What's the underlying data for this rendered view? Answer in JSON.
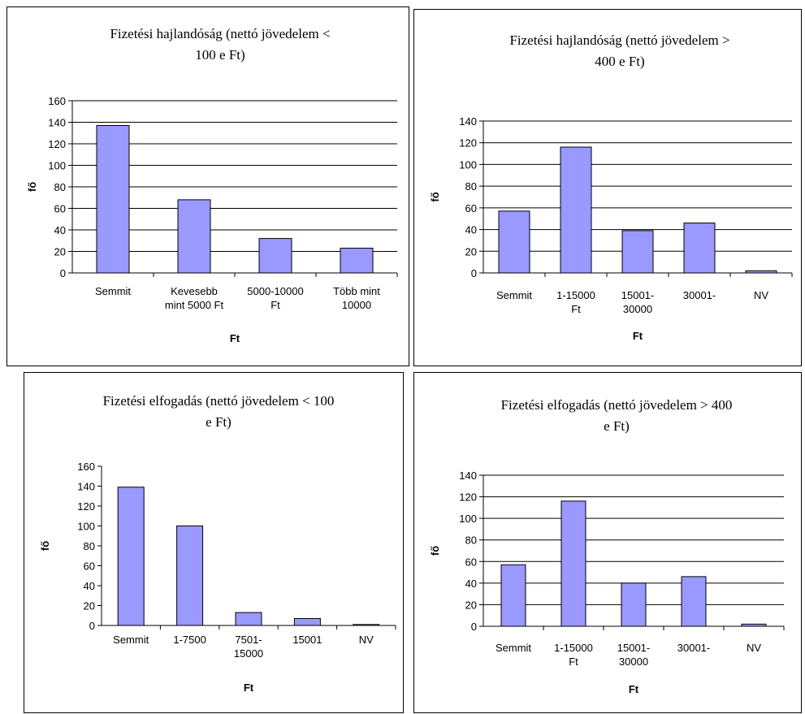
{
  "colors": {
    "bar_fill": "#9999ff",
    "bar_stroke": "#000000",
    "grid": "#000000"
  },
  "chart_data": [
    {
      "type": "bar",
      "title_lines": [
        "Fizetési hajlandóság (nettó jövedelem <",
        "100 e Ft)"
      ],
      "categories": [
        [
          "Semmit"
        ],
        [
          "Kevesebb",
          "mint 5000 Ft"
        ],
        [
          "5000-10000",
          "Ft"
        ],
        [
          "Több mint",
          "10000"
        ]
      ],
      "values": [
        137,
        68,
        32,
        23
      ],
      "ylim": [
        0,
        160
      ],
      "yticks": [
        0,
        20,
        40,
        60,
        80,
        100,
        120,
        140,
        160
      ],
      "xlabel": "Ft",
      "ylabel": "fő",
      "grid": true
    },
    {
      "type": "bar",
      "title_lines": [
        "Fizetési hajlandóság (nettó jövedelem >",
        "400 e Ft)"
      ],
      "categories": [
        [
          "Semmit"
        ],
        [
          "1-15000",
          "Ft"
        ],
        [
          "15001-",
          "30000"
        ],
        [
          "30001-"
        ],
        [
          "NV"
        ]
      ],
      "values": [
        57,
        116,
        39,
        46,
        2
      ],
      "ylim": [
        0,
        140
      ],
      "yticks": [
        0,
        20,
        40,
        60,
        80,
        100,
        120,
        140
      ],
      "xlabel": "Ft",
      "ylabel": "fő",
      "grid": true
    },
    {
      "type": "bar",
      "title_lines": [
        "Fizetési elfogadás (nettó jövedelem < 100",
        "e Ft)"
      ],
      "categories": [
        [
          "Semmit"
        ],
        [
          "1-7500"
        ],
        [
          "7501-",
          "15000"
        ],
        [
          "15001"
        ],
        [
          "NV"
        ]
      ],
      "values": [
        139,
        100,
        13,
        7,
        1
      ],
      "ylim": [
        0,
        160
      ],
      "yticks": [
        0,
        20,
        40,
        60,
        80,
        100,
        120,
        140,
        160
      ],
      "xlabel": "Ft",
      "ylabel": "fő",
      "grid": false
    },
    {
      "type": "bar",
      "title_lines": [
        "Fizetési elfogadás (nettó jövedelem > 400",
        "e Ft)"
      ],
      "categories": [
        [
          "Semmit"
        ],
        [
          "1-15000",
          "Ft"
        ],
        [
          "15001-",
          "30000"
        ],
        [
          "30001-"
        ],
        [
          "NV"
        ]
      ],
      "values": [
        57,
        116,
        40,
        46,
        2
      ],
      "ylim": [
        0,
        140
      ],
      "yticks": [
        0,
        20,
        40,
        60,
        80,
        100,
        120,
        140
      ],
      "xlabel": "Ft",
      "ylabel": "fő",
      "grid": true
    }
  ]
}
